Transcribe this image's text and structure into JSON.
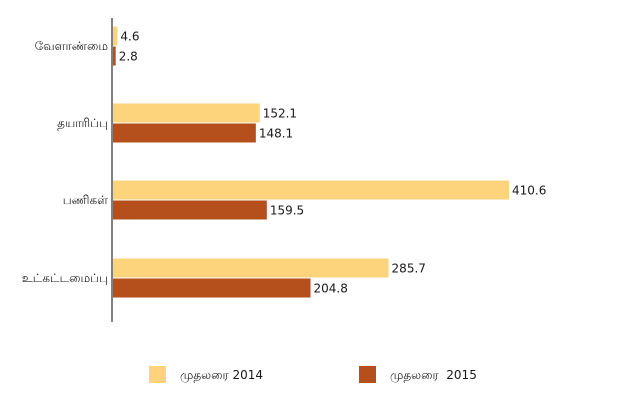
{
  "chart_data": {
    "type": "bar",
    "orientation": "horizontal",
    "categories": [
      "வேளாண்மை",
      "தயாரிப்பு",
      "பணிகள்",
      "உட்கட்டமைப்பு"
    ],
    "series": [
      {
        "name": "முதலரை 2014",
        "values": [
          4.6,
          152.1,
          410.6,
          285.7
        ],
        "color": "#FDD37C"
      },
      {
        "name": "முதலரை  2015",
        "values": [
          2.8,
          148.1,
          159.5,
          204.8
        ],
        "color": "#B5501D"
      }
    ],
    "title": "",
    "xlabel": "",
    "ylabel": "",
    "xlim": [
      0,
      430
    ],
    "grid": false,
    "legend_position": "bottom",
    "value_labels": [
      [
        "4.6",
        "152.1",
        "410.6",
        "285.7"
      ],
      [
        "2.8",
        "148.1",
        "159.5",
        "204.8"
      ]
    ]
  }
}
